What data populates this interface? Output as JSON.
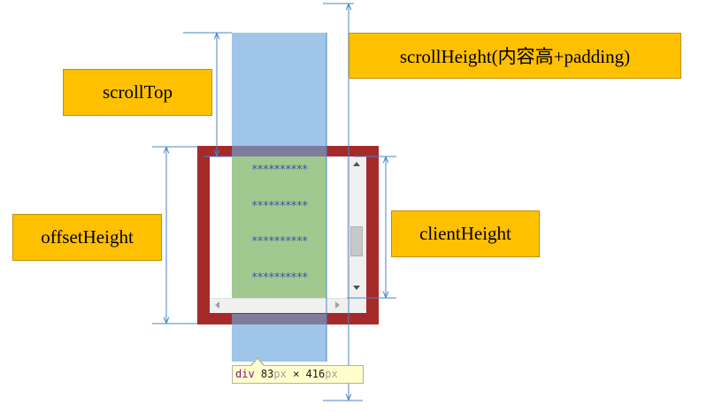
{
  "labels": {
    "scroll_top": "scrollTop",
    "scroll_height": "scrollHeight(内容高+padding)",
    "offset_height": "offsetHeight",
    "client_height": "clientHeight"
  },
  "content": {
    "stars": "**********"
  },
  "tooltip": {
    "tag": "div",
    "width_value": "83",
    "height_value": "416",
    "unit": "px",
    "separator": "×"
  },
  "colors": {
    "label_fill": "#ffc000",
    "border": "#a52a2a",
    "content": "#9fc5e8",
    "visible_content": "#a1c98f",
    "dimension_lines": "#4a86c5"
  },
  "icons": {
    "scroll_up": "triangle-up",
    "scroll_down": "triangle-down",
    "scroll_left": "triangle-left",
    "scroll_right": "triangle-right"
  }
}
